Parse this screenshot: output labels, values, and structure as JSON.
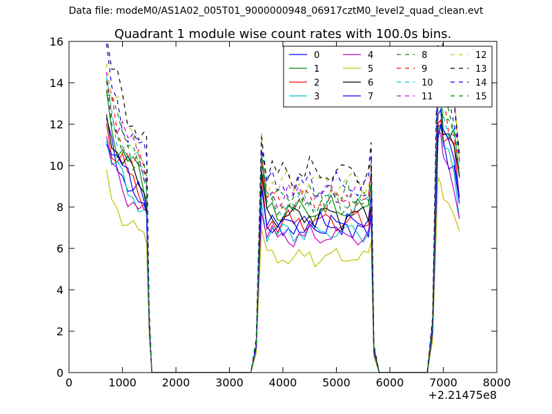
{
  "figure": {
    "suptitle": "Data file: modeM0/AS1A02_005T01_9000000948_06917cztM0_level2_quad_clean.evt"
  },
  "chart_data": {
    "type": "line",
    "title": "Quadrant 1 module wise count rates with 100.0s bins.",
    "xlabel": "",
    "ylabel": "",
    "x_offset_label": "+2.21475e8",
    "xlim": [
      0,
      8000
    ],
    "ylim": [
      0,
      16
    ],
    "x_ticks": [
      0,
      1000,
      2000,
      3000,
      4000,
      5000,
      6000,
      7000,
      8000
    ],
    "y_ticks": [
      0,
      2,
      4,
      6,
      8,
      10,
      12,
      14,
      16
    ],
    "grid": false,
    "legend": {
      "placement": "top-right",
      "columns": 4
    },
    "x": [
      700,
      800,
      900,
      1000,
      1100,
      1200,
      1300,
      1400,
      1450,
      1500,
      1550,
      1600,
      1700,
      1800,
      1900,
      2000,
      2100,
      2200,
      2300,
      2400,
      2500,
      2600,
      2700,
      2800,
      2900,
      3000,
      3100,
      3200,
      3300,
      3400,
      3500,
      3600,
      3700,
      3800,
      3900,
      4000,
      4100,
      4200,
      4300,
      4400,
      4500,
      4600,
      4700,
      4800,
      4900,
      5000,
      5100,
      5200,
      5300,
      5400,
      5500,
      5600,
      5650,
      5700,
      5800,
      5900,
      6000,
      6100,
      6200,
      6300,
      6400,
      6500,
      6600,
      6700,
      6800,
      6900,
      6950,
      7000,
      7100,
      7200,
      7300
    ],
    "segments": [
      {
        "start": 700,
        "baseline": [
          11.9,
          10.8,
          10.2,
          9.8,
          9.3,
          9.0,
          8.7,
          8.3
        ],
        "drop": [
          2.2,
          0.0
        ]
      },
      {
        "start": 3600,
        "baseline": [
          9.0,
          7.1,
          7.3,
          7.0,
          7.1,
          7.2,
          7.0,
          7.2,
          7.1,
          7.3,
          7.0,
          7.2,
          7.1,
          7.3,
          7.2,
          7.0,
          7.3,
          7.1,
          7.2,
          7.1
        ],
        "rise": [
          1.2,
          5.0
        ]
      },
      {
        "start": 6900,
        "baseline": [
          12.0,
          11.3,
          10.7,
          10.2
        ],
        "rise": [
          2.0,
          8.0
        ]
      }
    ],
    "series": [
      {
        "name": "0",
        "color": "#0000ff",
        "dash": "solid",
        "scale": 0.99,
        "phase": 0.1
      },
      {
        "name": "1",
        "color": "#008000",
        "dash": "solid",
        "scale": 1.1,
        "phase": 0.7
      },
      {
        "name": "2",
        "color": "#ff0000",
        "dash": "solid",
        "scale": 1.02,
        "phase": 1.3
      },
      {
        "name": "3",
        "color": "#00bfbf",
        "dash": "solid",
        "scale": 0.95,
        "phase": 1.9
      },
      {
        "name": "4",
        "color": "#bf00bf",
        "dash": "solid",
        "scale": 0.92,
        "phase": 2.5
      },
      {
        "name": "5",
        "color": "#bfbf00",
        "dash": "solid",
        "scale": 0.78,
        "phase": 3.1
      },
      {
        "name": "6",
        "color": "#000000",
        "dash": "solid",
        "scale": 1.06,
        "phase": 3.7
      },
      {
        "name": "7",
        "color": "#0000ff",
        "dash": "solid",
        "scale": 1.0,
        "phase": 4.3
      },
      {
        "name": "8",
        "color": "#008000",
        "dash": "dashed",
        "scale": 1.18,
        "phase": 4.9
      },
      {
        "name": "9",
        "color": "#ff0000",
        "dash": "dashed",
        "scale": 1.16,
        "phase": 5.5
      },
      {
        "name": "10",
        "color": "#00bfbf",
        "dash": "dashed",
        "scale": 1.14,
        "phase": 0.4
      },
      {
        "name": "11",
        "color": "#bf00bf",
        "dash": "dashed",
        "scale": 1.2,
        "phase": 1.0
      },
      {
        "name": "12",
        "color": "#bfbf00",
        "dash": "dashed",
        "scale": 1.28,
        "phase": 1.6
      },
      {
        "name": "13",
        "color": "#000000",
        "dash": "dashed",
        "scale": 1.35,
        "phase": 2.2
      },
      {
        "name": "14",
        "color": "#0000ff",
        "dash": "dashed",
        "scale": 1.26,
        "phase": 2.8
      },
      {
        "name": "15",
        "color": "#008000",
        "dash": "dashed",
        "scale": 1.15,
        "phase": 3.4
      }
    ]
  }
}
